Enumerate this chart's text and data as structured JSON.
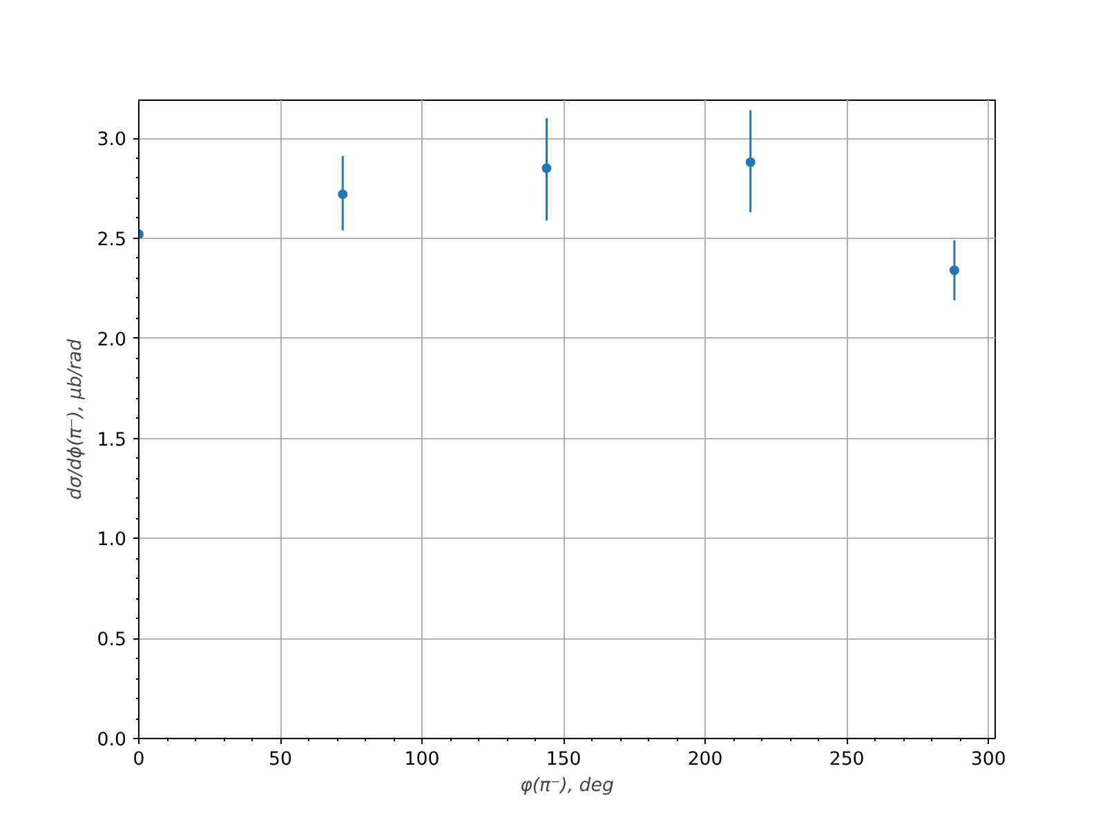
{
  "chart_data": {
    "type": "scatter",
    "xlabel": "φ(π⁻), deg",
    "ylabel": "dσ/dϕ(π⁻), μb/rad",
    "x": [
      0,
      72,
      144,
      216,
      288
    ],
    "series": [
      {
        "color": "#1f77b4",
        "values": [
          2.52,
          2.72,
          2.85,
          2.88,
          2.34
        ],
        "errors": [
          null,
          [
            2.54,
            2.91
          ],
          [
            2.59,
            3.1
          ],
          [
            2.63,
            3.14
          ],
          [
            2.19,
            2.49
          ]
        ]
      }
    ],
    "xlim": [
      0,
      302.4
    ],
    "ylim": [
      0,
      3.19
    ],
    "xticks": [
      0,
      50,
      100,
      150,
      200,
      250,
      300
    ],
    "yticks": [
      {
        "value": 0,
        "label": "0.0"
      },
      {
        "value": 0.5,
        "label": "0.5"
      },
      {
        "value": 1,
        "label": "1.0"
      },
      {
        "value": 1.5,
        "label": "1.5"
      },
      {
        "value": 2,
        "label": "2.0"
      },
      {
        "value": 2.5,
        "label": "2.5"
      },
      {
        "value": 3,
        "label": "3.0"
      }
    ],
    "grid": true,
    "marker": "circle"
  }
}
